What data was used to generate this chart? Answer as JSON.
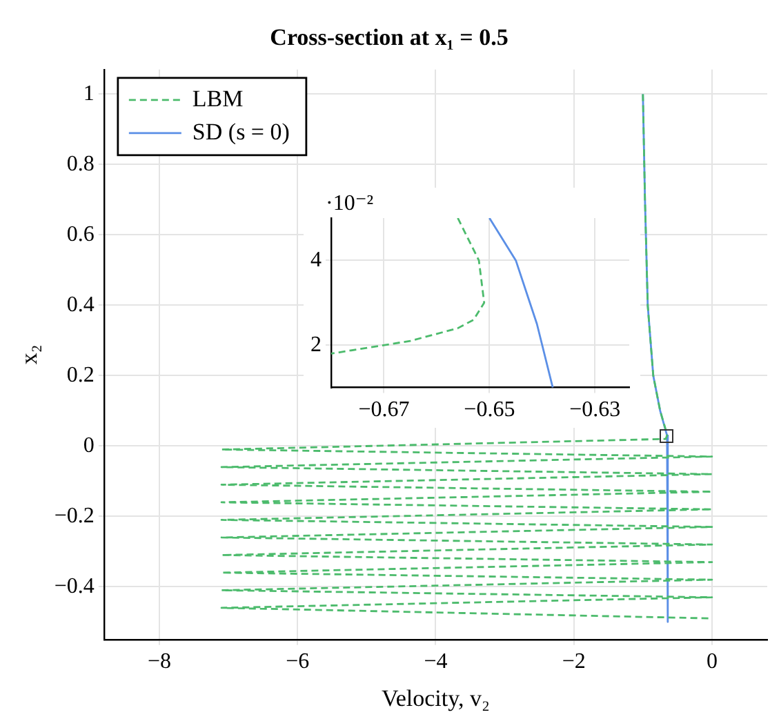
{
  "chart_data": [
    {
      "type": "line",
      "title": "Cross-section at x₁ = 0.5",
      "xlabel": "Velocity, v₂",
      "ylabel": "x₂",
      "xlim": [
        -8.8,
        0.8
      ],
      "ylim": [
        -0.55,
        1.07
      ],
      "xticks": [
        -8,
        -6,
        -4,
        -2,
        0
      ],
      "yticks": [
        -0.4,
        -0.2,
        0,
        0.2,
        0.4,
        0.6,
        0.8,
        1
      ],
      "grid": true,
      "legend": "top left",
      "series": [
        {
          "name": "LBM",
          "color": "#4cbb6c",
          "line_style": "dashed",
          "x": [
            -1.0,
            -0.97,
            -0.93,
            -0.85,
            -0.75,
            -0.66,
            -0.65,
            -0.67,
            -7.1,
            0,
            -7.1,
            0,
            -7.1,
            0,
            -7.1,
            0,
            -7.1,
            0,
            -7.1,
            0,
            -7.1,
            0,
            -7.1,
            0,
            -7.1,
            0,
            -7.1,
            0
          ],
          "values": [
            1,
            0.7,
            0.4,
            0.2,
            0.1,
            0.04,
            0.03,
            0.02,
            -0.01,
            -0.03,
            -0.06,
            -0.08,
            -0.11,
            -0.13,
            -0.16,
            -0.18,
            -0.21,
            -0.23,
            -0.26,
            -0.28,
            -0.31,
            -0.33,
            -0.36,
            -0.38,
            -0.41,
            -0.43,
            -0.46,
            -0.49
          ]
        },
        {
          "name": "SD (s = 0)",
          "color": "#5b8fe6",
          "line_style": "solid",
          "x": [
            -1.0,
            -0.97,
            -0.93,
            -0.85,
            -0.75,
            -0.65,
            -0.64
          ],
          "values": [
            1,
            0.7,
            0.4,
            0.2,
            0.1,
            0.03,
            -0.5
          ]
        }
      ]
    },
    {
      "type": "line",
      "xlim": [
        -0.68,
        -0.6235
      ],
      "ylim": [
        1,
        5
      ],
      "xticks": [
        -0.67,
        -0.65,
        -0.63
      ],
      "yticks": [
        2,
        4
      ],
      "grid": true,
      "annotations": [
        "·10⁻²"
      ],
      "series": [
        {
          "color": "#4cbb6c",
          "line_style": "dashed",
          "x": [
            -0.656,
            -0.652,
            -0.651,
            -0.653,
            -0.656,
            -0.665,
            -0.68
          ],
          "values": [
            5,
            4,
            3,
            2.6,
            2.4,
            2.1,
            1.8
          ]
        },
        {
          "color": "#5b8fe6",
          "line_style": "solid",
          "x": [
            -0.65,
            -0.645,
            -0.641,
            -0.638
          ],
          "values": [
            5,
            4,
            2.5,
            1
          ]
        }
      ]
    }
  ]
}
